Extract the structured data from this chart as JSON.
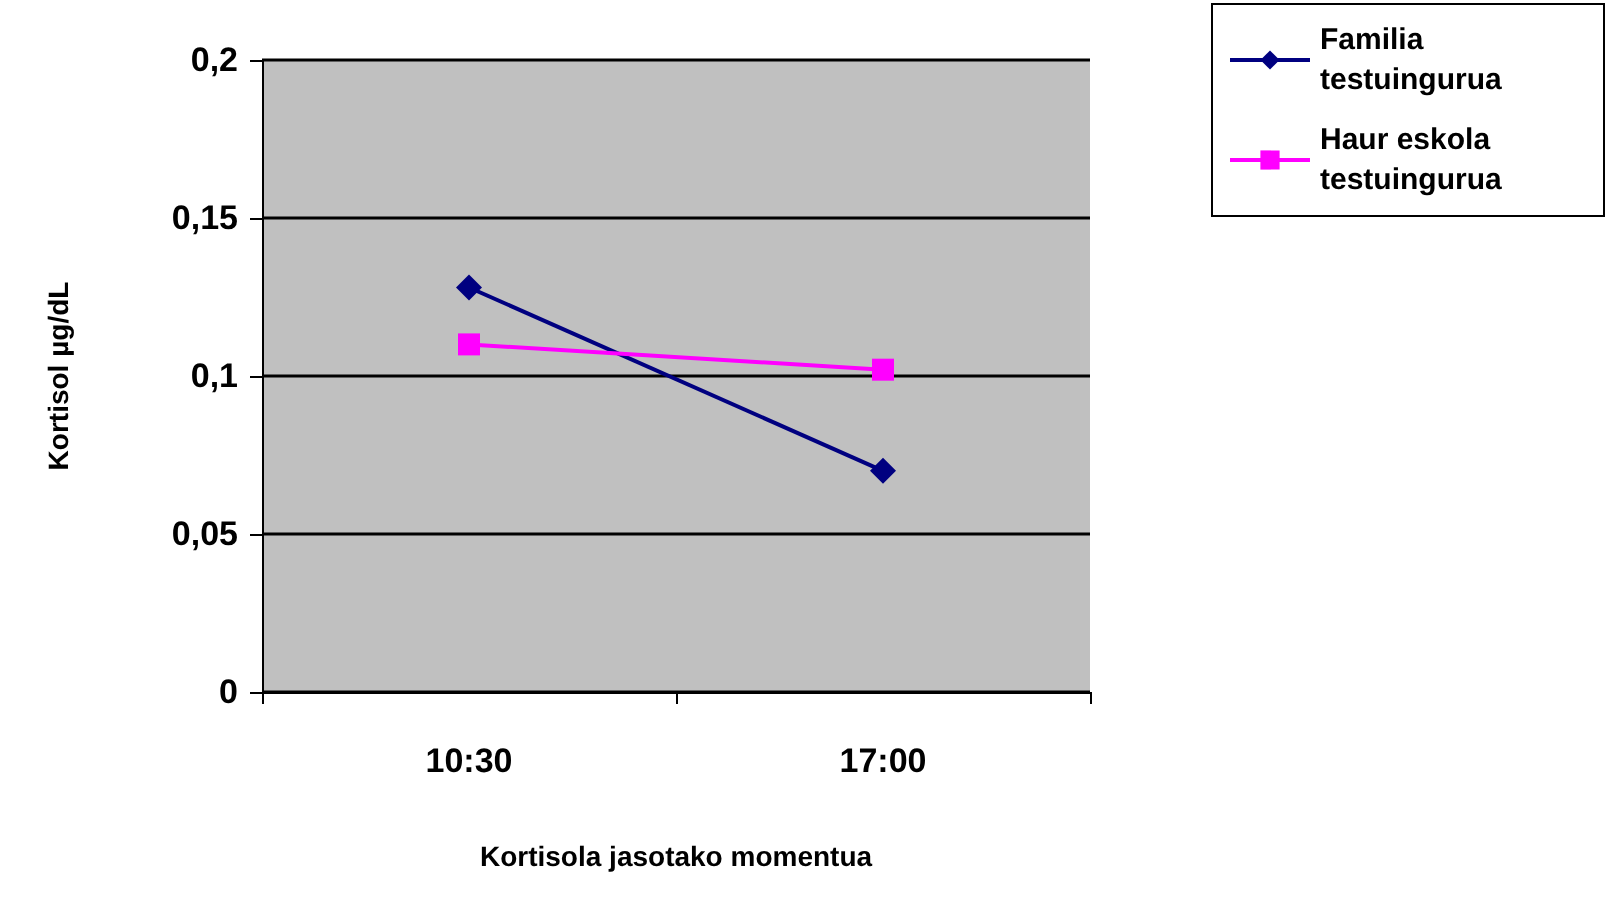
{
  "chart_data": {
    "type": "line",
    "xlabel": "Kortisola jasotako momentua",
    "ylabel": "Kortisol µg/dL",
    "categories": [
      "10:30",
      "17:00"
    ],
    "series": [
      {
        "name": "Familia testuingurua",
        "color": "#000080",
        "marker": "diamond",
        "values": [
          0.128,
          0.07
        ]
      },
      {
        "name": "Haur eskola testuingurua",
        "color": "#ff00ff",
        "marker": "square",
        "values": [
          0.11,
          0.102
        ]
      }
    ],
    "ylim": [
      0,
      0.2
    ],
    "yticks": [
      0,
      {
        "value": 0.05,
        "label": "0,05"
      },
      {
        "value": 0.1,
        "label": "0,1"
      },
      {
        "value": 0.15,
        "label": "0,15"
      },
      {
        "value": 0.2,
        "label": "0,2"
      }
    ],
    "grid": "y",
    "legend": "top right"
  }
}
